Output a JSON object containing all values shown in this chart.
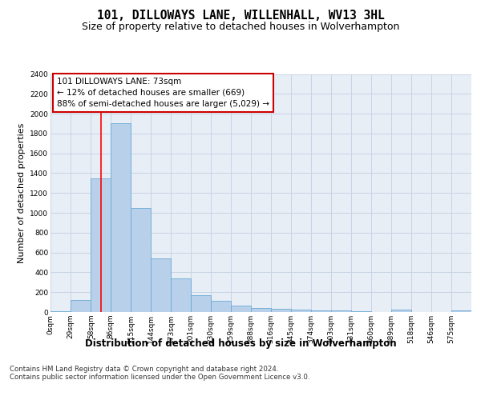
{
  "title": "101, DILLOWAYS LANE, WILLENHALL, WV13 3HL",
  "subtitle": "Size of property relative to detached houses in Wolverhampton",
  "xlabel": "Distribution of detached houses by size in Wolverhampton",
  "ylabel": "Number of detached properties",
  "footnote1": "Contains HM Land Registry data © Crown copyright and database right 2024.",
  "footnote2": "Contains public sector information licensed under the Open Government Licence v3.0.",
  "bar_edges": [
    0,
    29,
    58,
    86,
    115,
    144,
    173,
    201,
    230,
    259,
    288,
    316,
    345,
    374,
    403,
    431,
    460,
    489,
    518,
    546,
    575
  ],
  "bar_heights": [
    10,
    125,
    1345,
    1900,
    1045,
    540,
    340,
    170,
    115,
    65,
    40,
    30,
    25,
    20,
    15,
    5,
    0,
    25,
    0,
    0,
    15
  ],
  "tick_labels": [
    "0sqm",
    "29sqm",
    "58sqm",
    "86sqm",
    "115sqm",
    "144sqm",
    "173sqm",
    "201sqm",
    "230sqm",
    "259sqm",
    "288sqm",
    "316sqm",
    "345sqm",
    "374sqm",
    "403sqm",
    "431sqm",
    "460sqm",
    "489sqm",
    "518sqm",
    "546sqm",
    "575sqm"
  ],
  "bar_color": "#b8d0ea",
  "bar_edge_color": "#6aaad4",
  "red_line_x": 73,
  "annotation_line1": "101 DILLOWAYS LANE: 73sqm",
  "annotation_line2": "← 12% of detached houses are smaller (669)",
  "annotation_line3": "88% of semi-detached houses are larger (5,029) →",
  "annotation_box_facecolor": "#ffffff",
  "annotation_box_edgecolor": "#cc0000",
  "ylim": [
    0,
    2400
  ],
  "yticks": [
    0,
    200,
    400,
    600,
    800,
    1000,
    1200,
    1400,
    1600,
    1800,
    2000,
    2200,
    2400
  ],
  "grid_color": "#c8d4e4",
  "background_color": "#e8eef6",
  "title_fontsize": 10.5,
  "subtitle_fontsize": 9,
  "xlabel_fontsize": 8.5,
  "ylabel_fontsize": 8,
  "tick_fontsize": 6.5,
  "annotation_fontsize": 7.5,
  "footnote_fontsize": 6.2
}
